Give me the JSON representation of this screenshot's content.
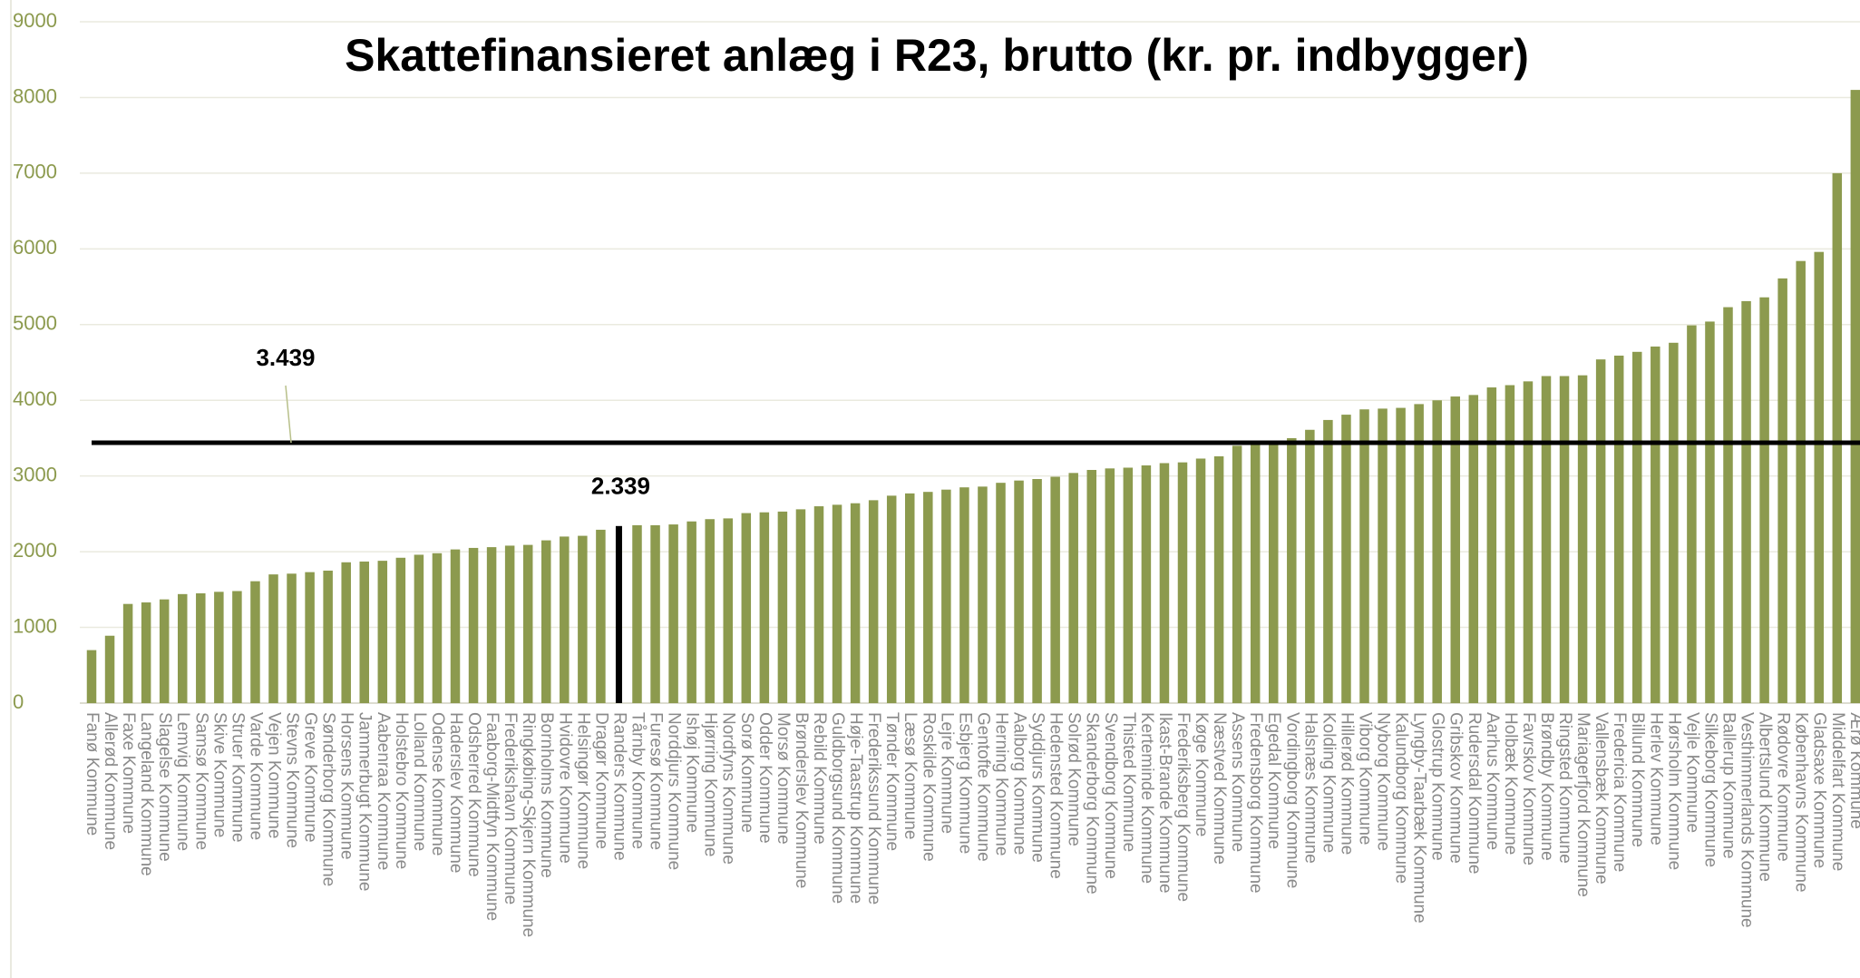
{
  "chart_data": {
    "type": "bar",
    "title": "Skattefinansieret anlæg i R23, brutto (kr. pr. indbygger)",
    "categories": [
      "Fanø Kommune",
      "Allerød Kommune",
      "Faxe Kommune",
      "Langeland Kommune",
      "Slagelse Kommune",
      "Lemvig Kommune",
      "Samsø Kommune",
      "Skive Kommune",
      "Struer Kommune",
      "Varde Kommune",
      "Vejen Kommune",
      "Stevns Kommune",
      "Greve Kommune",
      "Sønderborg Kommune",
      "Horsens Kommune",
      "Jammerbugt Kommune",
      "Aabenraa Kommune",
      "Holstebro Kommune",
      "Lolland Kommune",
      "Odense Kommune",
      "Haderslev Kommune",
      "Odsherred Kommune",
      "Faaborg-Midtfyn Kommune",
      "Frederikshavn Kommune",
      "Ringkøbing-Skjern Kommune",
      "Bornholms Kommune",
      "Hvidovre Kommune",
      "Helsingør Kommune",
      "Dragør Kommune",
      "Randers Kommune",
      "Tårnby Kommune",
      "Furesø Kommune",
      "Norddjurs Kommune",
      "Ishøj Kommune",
      "Hjørring Kommune",
      "Nordfyns Kommune",
      "Sorø Kommune",
      "Odder Kommune",
      "Morsø Kommune",
      "Brønderslev Kommune",
      "Rebild Kommune",
      "Guldborgsund Kommune",
      "Høje-Taastrup Kommune",
      "Frederikssund Kommune",
      "Tønder Kommune",
      "Læsø Kommune",
      "Roskilde Kommune",
      "Lejre Kommune",
      "Esbjerg Kommune",
      "Gentofte Kommune",
      "Herning Kommune",
      "Aalborg Kommune",
      "Syddjurs Kommune",
      "Hedensted Kommune",
      "Solrød Kommune",
      "Skanderborg Kommune",
      "Svendborg Kommune",
      "Thisted Kommune",
      "Kerteminde Kommune",
      "Ikast-Brande Kommune",
      "Frederiksberg Kommune",
      "Køge Kommune",
      "Næstved Kommune",
      "Assens Kommune",
      "Fredensborg Kommune",
      "Egedal Kommune",
      "Vordingborg Kommune",
      "Halsnæs Kommune",
      "Kolding Kommune",
      "Hillerød Kommune",
      "Viborg Kommune",
      "Nyborg Kommune",
      "Kalundborg Kommune",
      "Lyngby-Taarbæk Kommune",
      "Glostrup Kommune",
      "Gribskov Kommune",
      "Rudersdal Kommune",
      "Aarhus Kommune",
      "Holbæk Kommune",
      "Favrskov Kommune",
      "Brøndby Kommune",
      "Ringsted Kommune",
      "Mariagerfjord Kommune",
      "Vallensbæk Kommune",
      "Fredericia Kommune",
      "Billund Kommune",
      "Herlev Kommune",
      "Hørsholm Kommune",
      "Vejle Kommune",
      "Silkeborg Kommune",
      "Ballerup Kommune",
      "Vesthimmerlands Kommune",
      "Albertslund Kommune",
      "Rødovre Kommune",
      "Københavns Kommune",
      "Gladsaxe Kommune",
      "Middelfart Kommune",
      "Ærø Kommune"
    ],
    "values": [
      700,
      890,
      1310,
      1330,
      1370,
      1440,
      1450,
      1470,
      1480,
      1610,
      1700,
      1710,
      1730,
      1750,
      1860,
      1870,
      1880,
      1920,
      1960,
      1980,
      2030,
      2050,
      2060,
      2080,
      2090,
      2150,
      2200,
      2210,
      2290,
      2339,
      2350,
      2350,
      2360,
      2400,
      2430,
      2440,
      2510,
      2520,
      2530,
      2560,
      2600,
      2620,
      2640,
      2680,
      2740,
      2770,
      2790,
      2820,
      2850,
      2860,
      2910,
      2940,
      2960,
      2990,
      3040,
      3080,
      3100,
      3110,
      3140,
      3170,
      3180,
      3230,
      3260,
      3400,
      3420,
      3440,
      3500,
      3610,
      3740,
      3810,
      3880,
      3890,
      3900,
      3950,
      4000,
      4050,
      4070,
      4170,
      4200,
      4250,
      4320,
      4320,
      4330,
      4540,
      4590,
      4640,
      4710,
      4760,
      4990,
      5040,
      5230,
      5310,
      5360,
      5610,
      5840,
      5960,
      7000,
      8100
    ],
    "highlight": {
      "index": 29,
      "color": "#000000",
      "label": "2.339"
    },
    "color": "#8c9a4e",
    "reference_line": {
      "value": 3439,
      "label": "3.439",
      "color": "#000000"
    },
    "ylim": [
      0,
      9000
    ],
    "yticks": [
      0,
      1000,
      2000,
      3000,
      4000,
      5000,
      6000,
      7000,
      8000,
      9000
    ],
    "grid": true
  }
}
